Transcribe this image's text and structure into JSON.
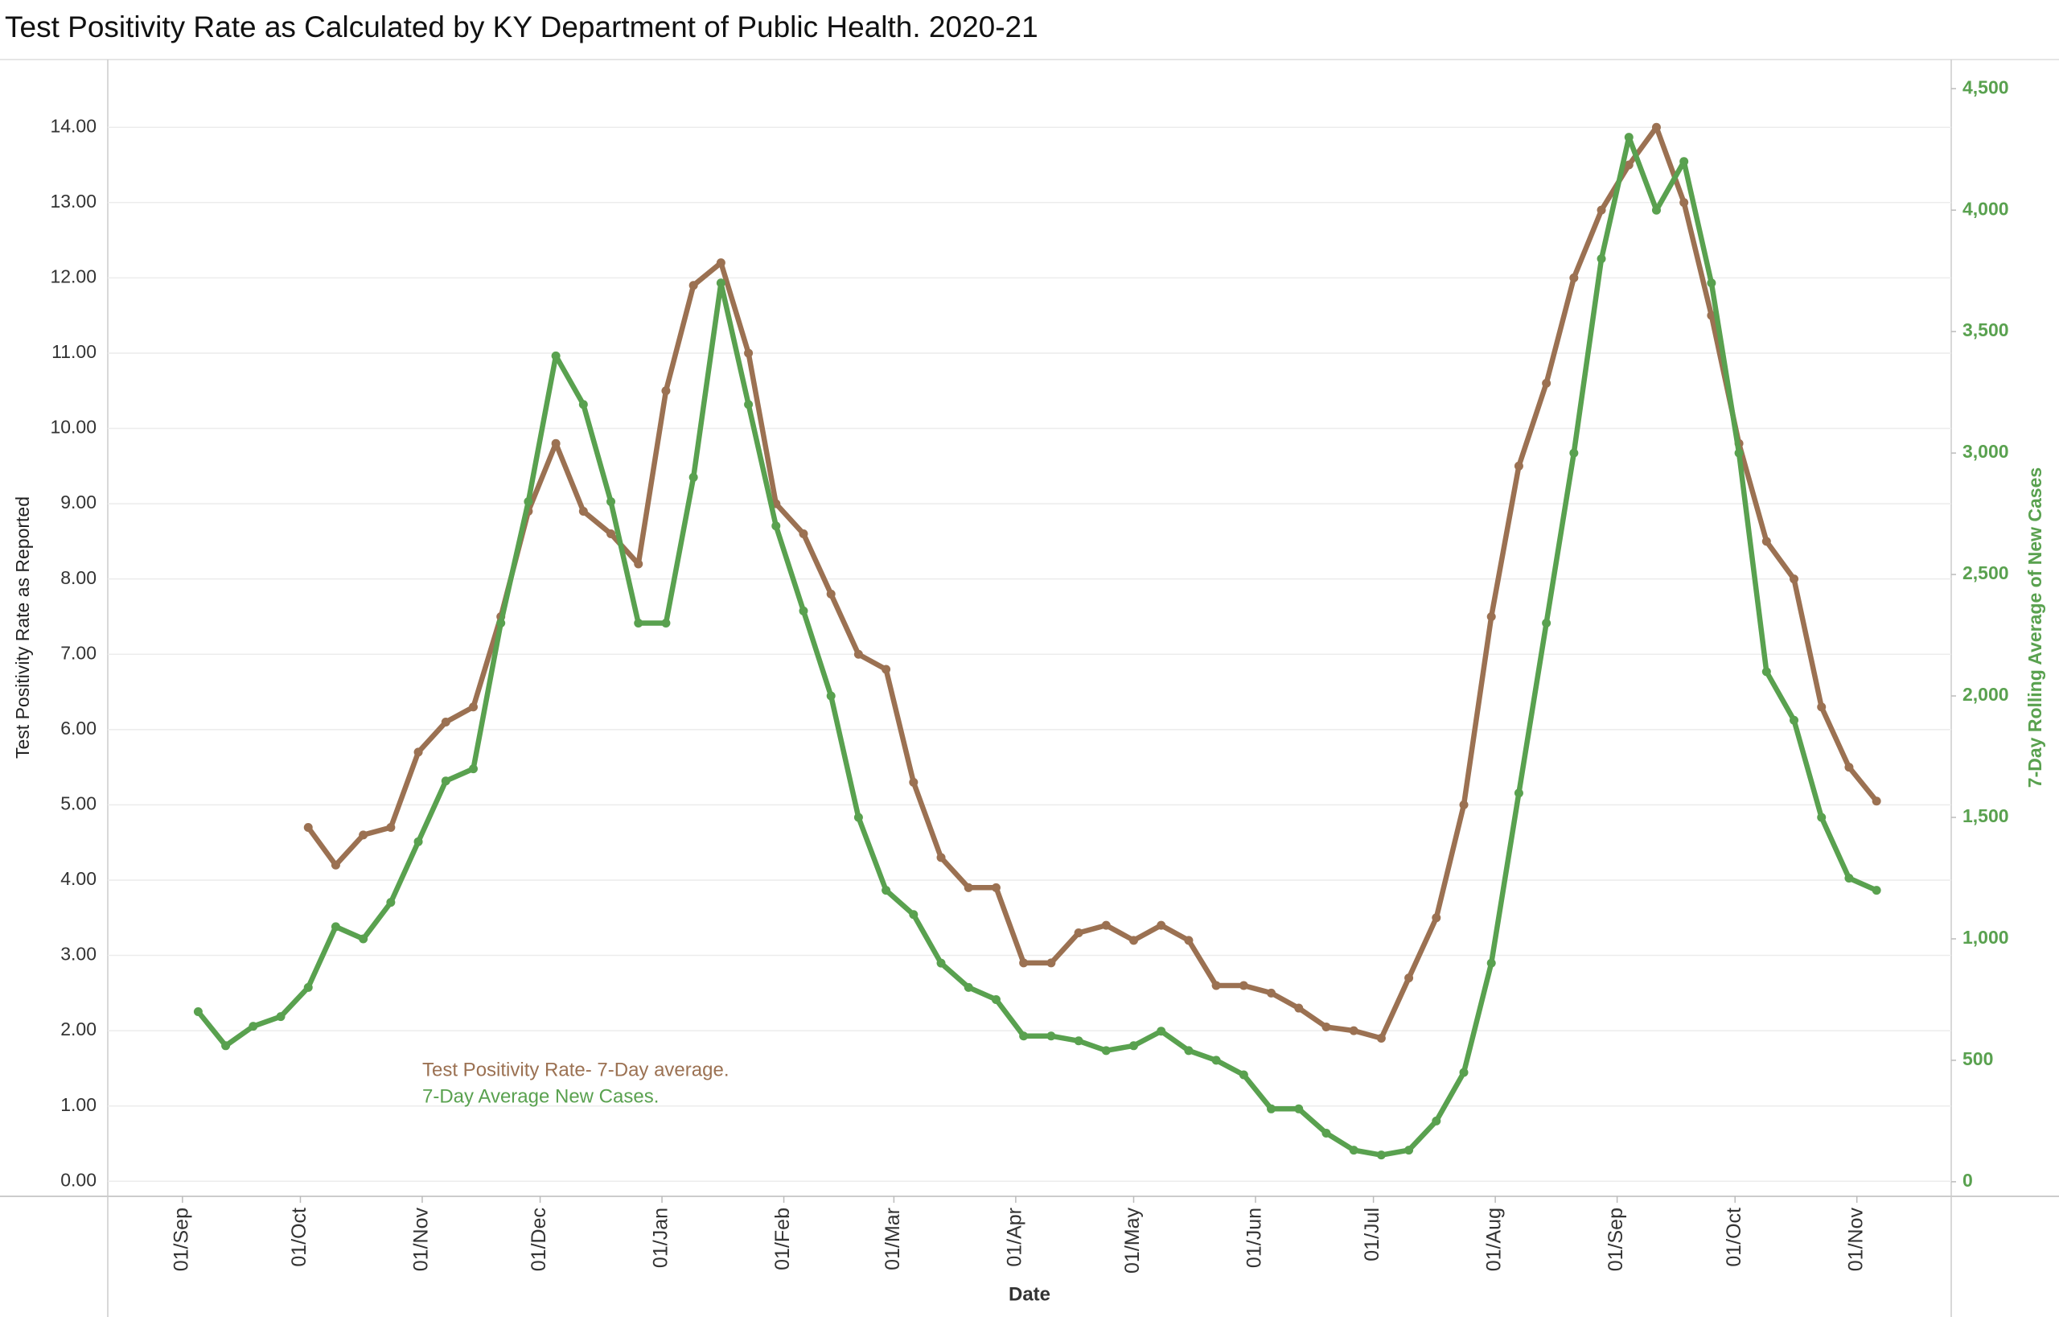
{
  "chart_data": {
    "type": "line",
    "title": "Test Positivity Rate as Calculated by KY Department of Public Health. 2020-21",
    "x_label": "Date",
    "y_label": "Test Positivity Rate as Reported",
    "y2_label": "7-Day Rolling Average of New Cases",
    "x": [
      "05/Sep",
      "12/Sep",
      "19/Sep",
      "26/Sep",
      "03/Oct",
      "10/Oct",
      "17/Oct",
      "24/Oct",
      "31/Oct",
      "07/Nov",
      "14/Nov",
      "21/Nov",
      "28/Nov",
      "05/Dec",
      "12/Dec",
      "19/Dec",
      "26/Dec",
      "02/Jan",
      "09/Jan",
      "16/Jan",
      "23/Jan",
      "30/Jan",
      "06/Feb",
      "13/Feb",
      "20/Feb",
      "27/Feb",
      "06/Mar",
      "13/Mar",
      "20/Mar",
      "27/Mar",
      "03/Apr",
      "10/Apr",
      "17/Apr",
      "24/Apr",
      "01/May",
      "08/May",
      "15/May",
      "22/May",
      "29/May",
      "05/Jun",
      "12/Jun",
      "19/Jun",
      "26/Jun",
      "03/Jul",
      "10/Jul",
      "17/Jul",
      "24/Jul",
      "31/Jul",
      "07/Aug",
      "14/Aug",
      "21/Aug",
      "28/Aug",
      "04/Sep",
      "11/Sep",
      "18/Sep",
      "25/Sep",
      "02/Oct",
      "09/Oct",
      "16/Oct",
      "23/Oct",
      "30/Oct",
      "06/Nov"
    ],
    "series": [
      {
        "name": "Test Positivity Rate- 7-Day average.",
        "color": "#9b7152",
        "axis": "y",
        "values": [
          null,
          null,
          null,
          null,
          4.7,
          4.2,
          4.6,
          4.7,
          5.7,
          6.1,
          6.3,
          7.5,
          8.9,
          9.8,
          8.9,
          8.6,
          8.2,
          10.5,
          11.9,
          12.2,
          11.0,
          9.0,
          8.6,
          7.8,
          7.0,
          6.8,
          5.3,
          4.3,
          3.9,
          3.9,
          2.9,
          2.9,
          3.3,
          3.4,
          3.2,
          3.4,
          3.2,
          2.6,
          2.6,
          2.5,
          2.3,
          2.05,
          2.0,
          1.9,
          2.7,
          3.5,
          5.0,
          7.5,
          9.5,
          10.6,
          12.0,
          12.9,
          13.5,
          14.0,
          13.0,
          11.5,
          9.8,
          8.5,
          8.0,
          6.3,
          5.5,
          5.05
        ]
      },
      {
        "name": "7-Day Average New Cases.",
        "color": "#59a14f",
        "axis": "y2",
        "values": [
          700,
          560,
          640,
          680,
          800,
          1050,
          1000,
          1150,
          1400,
          1650,
          1700,
          2300,
          2800,
          3400,
          3200,
          2800,
          2300,
          2300,
          2900,
          3700,
          3200,
          2700,
          2350,
          2000,
          1500,
          1200,
          1100,
          900,
          800,
          750,
          600,
          600,
          580,
          540,
          560,
          620,
          540,
          500,
          440,
          300,
          300,
          200,
          130,
          110,
          130,
          250,
          450,
          900,
          1600,
          2300,
          3000,
          3800,
          4300,
          4000,
          4200,
          3700,
          3000,
          2100,
          1900,
          1500,
          1250,
          1200
        ]
      }
    ],
    "xlim": [
      "13/Aug",
      "25/Nov"
    ],
    "xticks": [
      "01/Sep",
      "01/Oct",
      "01/Nov",
      "01/Dec",
      "01/Jan",
      "01/Feb",
      "01/Mar",
      "01/Apr",
      "01/May",
      "01/Jun",
      "01/Jul",
      "01/Aug",
      "01/Sep",
      "01/Oct",
      "01/Nov"
    ],
    "ylim": [
      -0.2,
      14.9
    ],
    "yticks": [
      {
        "value": 0,
        "label": "0.00"
      },
      {
        "value": 1,
        "label": "1.00"
      },
      {
        "value": 2,
        "label": "2.00"
      },
      {
        "value": 3,
        "label": "3.00"
      },
      {
        "value": 4,
        "label": "4.00"
      },
      {
        "value": 5,
        "label": "5.00"
      },
      {
        "value": 6,
        "label": "6.00"
      },
      {
        "value": 7,
        "label": "7.00"
      },
      {
        "value": 8,
        "label": "8.00"
      },
      {
        "value": 9,
        "label": "9.00"
      },
      {
        "value": 10,
        "label": "10.00"
      },
      {
        "value": 11,
        "label": "11.00"
      },
      {
        "value": 12,
        "label": "12.00"
      },
      {
        "value": 13,
        "label": "13.00"
      },
      {
        "value": 14,
        "label": "14.00"
      }
    ],
    "y2lim": [
      -60,
      4620
    ],
    "y2ticks": [
      0,
      500,
      {
        "value": 1000,
        "label": "1,000"
      },
      {
        "value": 1500,
        "label": "1,500"
      },
      {
        "value": 2000,
        "label": "2,000"
      },
      {
        "value": 2500,
        "label": "2,500"
      },
      {
        "value": 3000,
        "label": "3,000"
      },
      {
        "value": 3500,
        "label": "3,500"
      },
      {
        "value": 4000,
        "label": "4,000"
      },
      {
        "value": 4500,
        "label": "4,500"
      }
    ],
    "grid": true
  }
}
